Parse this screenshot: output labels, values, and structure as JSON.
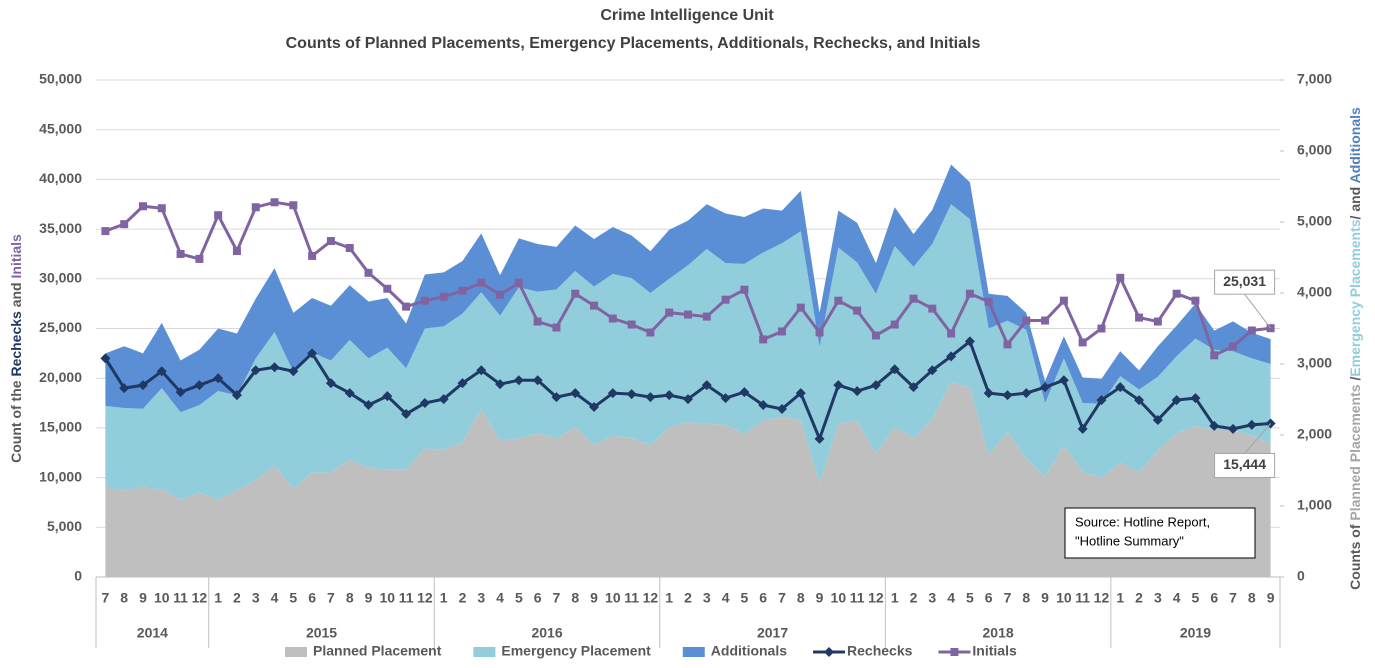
{
  "chart_data": {
    "type": "combo",
    "title": "Crime Intelligence Unit",
    "subtitle": "Counts of Planned Placements, Emergency Placements, Additionals, Rechecks, and Initials",
    "y_label": [
      {
        "text": "Count of the ",
        "color": "#595959"
      },
      {
        "text": "Rechecks",
        "color": "#1f3864"
      },
      {
        "text": " and ",
        "color": "#595959"
      },
      {
        "text": "Initials",
        "color": "#8064a2"
      }
    ],
    "y2_label": [
      {
        "text": "Counts of ",
        "color": "#595959"
      },
      {
        "text": "Planned Placements",
        "color": "#a6a6a6"
      },
      {
        "text": " /",
        "color": "#595959"
      },
      {
        "text": "Emergency Placements",
        "color": "#92cddc"
      },
      {
        "text": "/ and ",
        "color": "#595959"
      },
      {
        "text": "Additionals",
        "color": "#4f81bd"
      }
    ],
    "categories": [
      "7",
      "8",
      "9",
      "10",
      "11",
      "12",
      "1",
      "2",
      "3",
      "4",
      "5",
      "6",
      "7",
      "8",
      "9",
      "10",
      "11",
      "12",
      "1",
      "2",
      "3",
      "4",
      "5",
      "6",
      "7",
      "8",
      "9",
      "10",
      "11",
      "12",
      "1",
      "2",
      "3",
      "4",
      "5",
      "6",
      "7",
      "8",
      "9",
      "10",
      "11",
      "12",
      "1",
      "2",
      "3",
      "4",
      "5",
      "6",
      "7",
      "8",
      "9",
      "10",
      "11",
      "12",
      "1",
      "2",
      "3",
      "4",
      "5",
      "6",
      "7",
      "8",
      "9"
    ],
    "years": [
      "2014",
      "2015",
      "2016",
      "2017",
      "2018",
      "2019"
    ],
    "ylim": [
      0,
      50000
    ],
    "yticks": [
      {
        "value": 0,
        "label": "0"
      },
      {
        "value": 5000,
        "label": "5,000"
      },
      {
        "value": 10000,
        "label": "10,000"
      },
      {
        "value": 15000,
        "label": "15,000"
      },
      {
        "value": 20000,
        "label": "20,000"
      },
      {
        "value": 25000,
        "label": "25,000"
      },
      {
        "value": 30000,
        "label": "30,000"
      },
      {
        "value": 35000,
        "label": "35,000"
      },
      {
        "value": 40000,
        "label": "40,000"
      },
      {
        "value": 45000,
        "label": "45,000"
      },
      {
        "value": 50000,
        "label": "50,000"
      }
    ],
    "y2lim": [
      0,
      7000
    ],
    "y2ticks": [
      {
        "value": 0,
        "label": "0"
      },
      {
        "value": 1000,
        "label": "1,000"
      },
      {
        "value": 2000,
        "label": "2,000"
      },
      {
        "value": 3000,
        "label": "3,000"
      },
      {
        "value": 4000,
        "label": "4,000"
      },
      {
        "value": 5000,
        "label": "5,000"
      },
      {
        "value": 6000,
        "label": "6,000"
      },
      {
        "value": 7000,
        "label": "7,000"
      }
    ],
    "grid": true,
    "stacked": true,
    "series": [
      {
        "name": "Planned Placement",
        "type": "area",
        "axis": "y2",
        "color": "#bfbfbf",
        "values": [
          1260,
          1220,
          1260,
          1230,
          1090,
          1190,
          1090,
          1220,
          1370,
          1570,
          1250,
          1470,
          1470,
          1650,
          1540,
          1510,
          1510,
          1810,
          1790,
          1900,
          2370,
          1920,
          1950,
          2020,
          1950,
          2110,
          1860,
          1990,
          1960,
          1860,
          2110,
          2180,
          2160,
          2140,
          2020,
          2200,
          2250,
          2210,
          1320,
          2160,
          2200,
          1740,
          2110,
          1960,
          2230,
          2740,
          2670,
          1720,
          2040,
          1670,
          1410,
          1850,
          1480,
          1400,
          1610,
          1480,
          1780,
          2030,
          2130,
          2070,
          2070,
          1990,
          1880
        ]
      },
      {
        "name": "Emergency Placement",
        "type": "area",
        "axis": "y2",
        "color": "#92cddc",
        "values": [
          1150,
          1160,
          1110,
          1430,
          1230,
          1230,
          1530,
          1340,
          1710,
          1880,
          1640,
          1690,
          1580,
          1690,
          1540,
          1720,
          1430,
          1690,
          1740,
          1810,
          1640,
          1760,
          2130,
          2000,
          2100,
          2200,
          2230,
          2280,
          2250,
          2140,
          2090,
          2210,
          2460,
          2280,
          2390,
          2370,
          2450,
          2660,
          1920,
          2480,
          2230,
          2250,
          2550,
          2410,
          2460,
          2510,
          2370,
          1780,
          1570,
          1810,
          1040,
          1230,
          970,
          1040,
          1220,
          1160,
          1040,
          1080,
          1230,
          1130,
          1110,
          1090,
          1120
        ]
      },
      {
        "name": "Additionals",
        "type": "area",
        "axis": "y2",
        "color": "#5b8fd5",
        "values": [
          740,
          870,
          780,
          920,
          730,
          780,
          880,
          870,
          840,
          900,
          830,
          770,
          770,
          770,
          800,
          700,
          630,
          760,
          760,
          740,
          830,
          570,
          690,
          670,
          600,
          640,
          670,
          660,
          600,
          590,
          690,
          630,
          630,
          700,
          660,
          620,
          460,
          570,
          480,
          520,
          560,
          430,
          550,
          460,
          480,
          560,
          520,
          490,
          350,
          240,
          310,
          310,
          360,
          350,
          350,
          270,
          430,
          430,
          490,
          270,
          420,
          360,
          350
        ]
      },
      {
        "name": "Rechecks",
        "type": "line",
        "marker": "diamond",
        "color": "#1f3864",
        "values": [
          22000,
          19000,
          19300,
          20700,
          18600,
          19300,
          20000,
          18300,
          20800,
          21100,
          20700,
          22500,
          19500,
          18500,
          17300,
          18200,
          16400,
          17500,
          17900,
          19500,
          20800,
          19400,
          19800,
          19800,
          18100,
          18500,
          17100,
          18500,
          18400,
          18100,
          18300,
          17900,
          19300,
          18000,
          18600,
          17300,
          16900,
          18500,
          13900,
          19300,
          18700,
          19300,
          20900,
          19100,
          20800,
          22200,
          23700,
          18500,
          18300,
          18500,
          19100,
          19800,
          14900,
          17800,
          19100,
          17800,
          15800,
          17800,
          18000,
          15200,
          14900,
          15300,
          15444
        ],
        "value_labels": [
          null,
          null,
          null,
          null,
          null,
          null,
          null,
          null,
          null,
          null,
          null,
          null,
          null,
          null,
          null,
          null,
          null,
          null,
          null,
          null,
          null,
          null,
          null,
          null,
          null,
          null,
          null,
          null,
          null,
          null,
          null,
          null,
          null,
          null,
          null,
          null,
          null,
          null,
          null,
          null,
          null,
          null,
          null,
          null,
          null,
          null,
          null,
          null,
          null,
          null,
          null,
          null,
          null,
          null,
          null,
          null,
          null,
          null,
          null,
          null,
          null,
          null,
          "15,444"
        ]
      },
      {
        "name": "Initials",
        "type": "line",
        "marker": "square",
        "color": "#8064a2",
        "values": [
          34800,
          35500,
          37300,
          37100,
          32500,
          32000,
          36400,
          32800,
          37200,
          37700,
          37400,
          32300,
          33800,
          33100,
          30600,
          29000,
          27200,
          27800,
          28200,
          28800,
          29600,
          28400,
          29600,
          25700,
          25100,
          28500,
          27300,
          26000,
          25400,
          24600,
          26600,
          26400,
          26200,
          27900,
          28900,
          23900,
          24700,
          27100,
          24600,
          27800,
          26800,
          24300,
          25400,
          28000,
          27000,
          24500,
          28500,
          27700,
          23400,
          25800,
          25800,
          27800,
          23600,
          25000,
          30100,
          26100,
          25700,
          28500,
          27800,
          22300,
          23200,
          24800,
          25031
        ],
        "value_labels": [
          null,
          null,
          null,
          null,
          null,
          null,
          null,
          null,
          null,
          null,
          null,
          null,
          null,
          null,
          null,
          null,
          null,
          null,
          null,
          null,
          null,
          null,
          null,
          null,
          null,
          null,
          null,
          null,
          null,
          null,
          null,
          null,
          null,
          null,
          null,
          null,
          null,
          null,
          null,
          null,
          null,
          null,
          null,
          null,
          null,
          null,
          null,
          null,
          null,
          null,
          null,
          null,
          null,
          null,
          null,
          null,
          null,
          null,
          null,
          null,
          null,
          null,
          "25,031"
        ]
      }
    ],
    "annotation": [
      "Source: Hotline Report,",
      "\"Hotline Summary\""
    ]
  }
}
